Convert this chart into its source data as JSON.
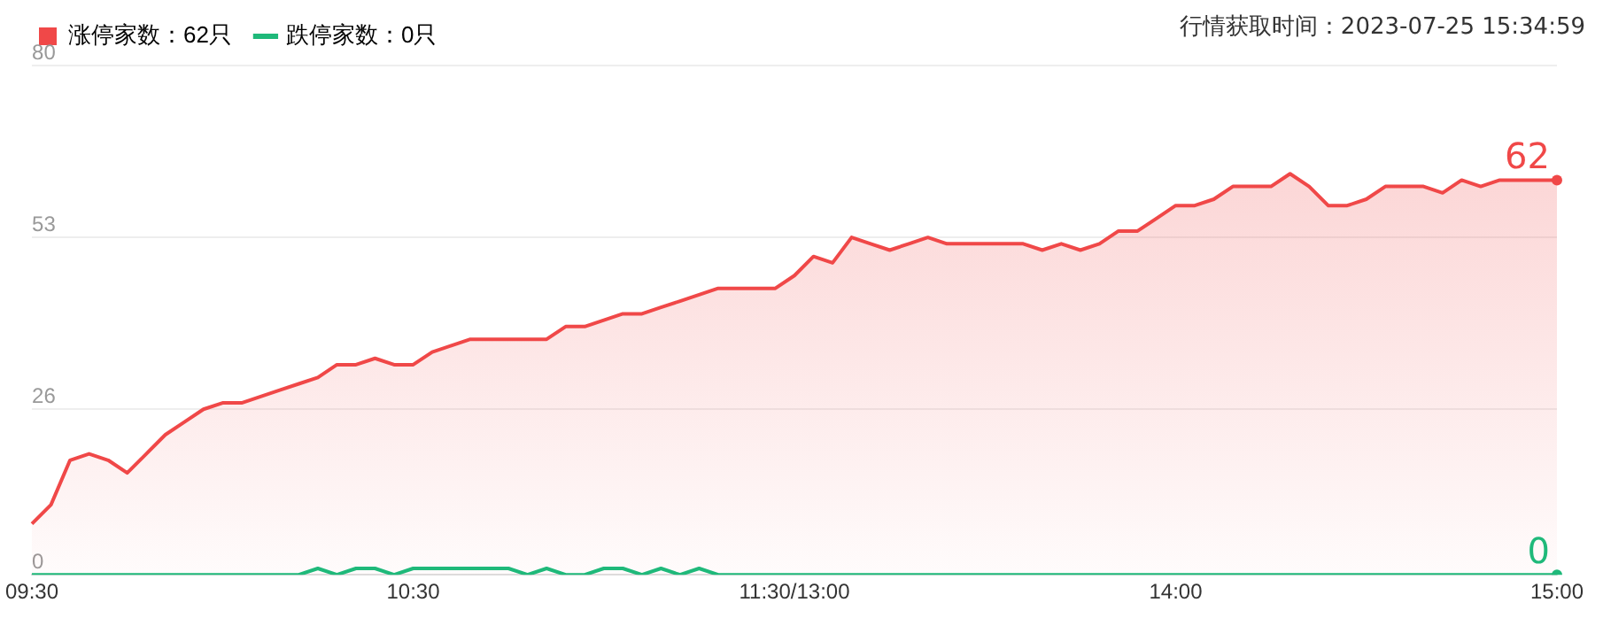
{
  "chart_data": {
    "type": "area",
    "annotations": [
      "行情获取时间：2023-07-25 15:34:59"
    ],
    "categories": [
      "09:30",
      null,
      null,
      null,
      null,
      null,
      null,
      null,
      null,
      null,
      null,
      null,
      null,
      null,
      null,
      null,
      null,
      null,
      null,
      null,
      "10:30",
      null,
      null,
      null,
      null,
      null,
      null,
      null,
      null,
      null,
      null,
      null,
      null,
      null,
      null,
      null,
      null,
      null,
      null,
      null,
      "11:30/13:00",
      null,
      null,
      null,
      null,
      null,
      null,
      null,
      null,
      null,
      null,
      null,
      null,
      null,
      null,
      null,
      null,
      null,
      null,
      null,
      "14:00",
      null,
      null,
      null,
      null,
      null,
      null,
      null,
      null,
      null,
      null,
      null,
      null,
      null,
      null,
      null,
      null,
      null,
      null,
      null,
      "15:00"
    ],
    "series": [
      {
        "name": "涨停家数：62只",
        "color": "#f04848",
        "values": [
          8,
          11,
          18,
          19,
          18,
          16,
          19,
          22,
          24,
          26,
          27,
          27,
          28,
          29,
          30,
          31,
          33,
          33,
          34,
          33,
          33,
          35,
          36,
          37,
          37,
          37,
          37,
          37,
          39,
          39,
          40,
          41,
          41,
          42,
          43,
          44,
          45,
          45,
          45,
          45,
          47,
          50,
          49,
          53,
          52,
          51,
          52,
          53,
          52,
          52,
          52,
          52,
          52,
          51,
          52,
          51,
          52,
          54,
          54,
          56,
          58,
          58,
          59,
          61,
          61,
          61,
          63,
          61,
          58,
          58,
          59,
          61,
          61,
          61,
          60,
          62,
          61,
          62,
          62,
          62,
          62
        ],
        "value_labels": [
          null,
          null,
          null,
          null,
          null,
          null,
          null,
          null,
          null,
          null,
          null,
          null,
          null,
          null,
          null,
          null,
          null,
          null,
          null,
          null,
          null,
          null,
          null,
          null,
          null,
          null,
          null,
          null,
          null,
          null,
          null,
          null,
          null,
          null,
          null,
          null,
          null,
          null,
          null,
          null,
          null,
          null,
          null,
          null,
          null,
          null,
          null,
          null,
          null,
          null,
          null,
          null,
          null,
          null,
          null,
          null,
          null,
          null,
          null,
          null,
          null,
          null,
          null,
          null,
          null,
          null,
          null,
          null,
          null,
          null,
          null,
          null,
          null,
          null,
          null,
          null,
          null,
          null,
          null,
          null,
          "62"
        ]
      },
      {
        "name": "跌停家数：0只",
        "type": "line",
        "color": "#1fb97a",
        "values": [
          0,
          0,
          0,
          0,
          0,
          0,
          0,
          0,
          0,
          0,
          0,
          0,
          0,
          0,
          0,
          1,
          0,
          1,
          1,
          0,
          1,
          1,
          1,
          1,
          1,
          1,
          0,
          1,
          0,
          0,
          1,
          1,
          0,
          1,
          0,
          1,
          0,
          0,
          0,
          0,
          0,
          0,
          0,
          0,
          0,
          0,
          0,
          0,
          0,
          0,
          0,
          0,
          0,
          0,
          0,
          0,
          0,
          0,
          0,
          0,
          0,
          0,
          0,
          0,
          0,
          0,
          0,
          0,
          0,
          0,
          0,
          0,
          0,
          0,
          0,
          0,
          0,
          0,
          0,
          0,
          0
        ],
        "value_labels": [
          null,
          null,
          null,
          null,
          null,
          null,
          null,
          null,
          null,
          null,
          null,
          null,
          null,
          null,
          null,
          null,
          null,
          null,
          null,
          null,
          null,
          null,
          null,
          null,
          null,
          null,
          null,
          null,
          null,
          null,
          null,
          null,
          null,
          null,
          null,
          null,
          null,
          null,
          null,
          null,
          null,
          null,
          null,
          null,
          null,
          null,
          null,
          null,
          null,
          null,
          null,
          null,
          null,
          null,
          null,
          null,
          null,
          null,
          null,
          null,
          null,
          null,
          null,
          null,
          null,
          null,
          null,
          null,
          null,
          null,
          null,
          null,
          null,
          null,
          null,
          null,
          null,
          null,
          null,
          null,
          "0"
        ]
      }
    ],
    "ylim": [
      0,
      80
    ],
    "yticks": [
      0,
      26,
      53,
      80
    ],
    "grid": "y",
    "legend": "top left"
  }
}
